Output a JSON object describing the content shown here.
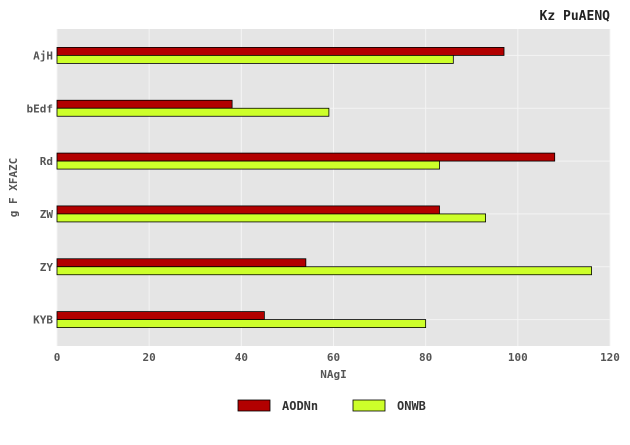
{
  "chart_data": {
    "type": "bar",
    "orientation": "horizontal",
    "title": "Kz PuAENQ",
    "xlabel": "NAgI",
    "ylabel": "g F XFAZC",
    "categories": [
      "AjH",
      "bEdf",
      "Rd",
      "ZW",
      "ZY",
      "KYB"
    ],
    "series": [
      {
        "name": "AODNn",
        "color": "#b20000",
        "values": [
          97,
          38,
          108,
          83,
          54,
          45
        ]
      },
      {
        "name": "ONWB",
        "color": "#cdff2a",
        "values": [
          86,
          59,
          83,
          93,
          116,
          80
        ]
      }
    ],
    "xlim": [
      0,
      120
    ],
    "xticks": [
      0,
      20,
      40,
      60,
      80,
      100,
      120
    ],
    "grid": true,
    "legend_position": "bottom-center",
    "plot_background": "#e5e5e5"
  }
}
